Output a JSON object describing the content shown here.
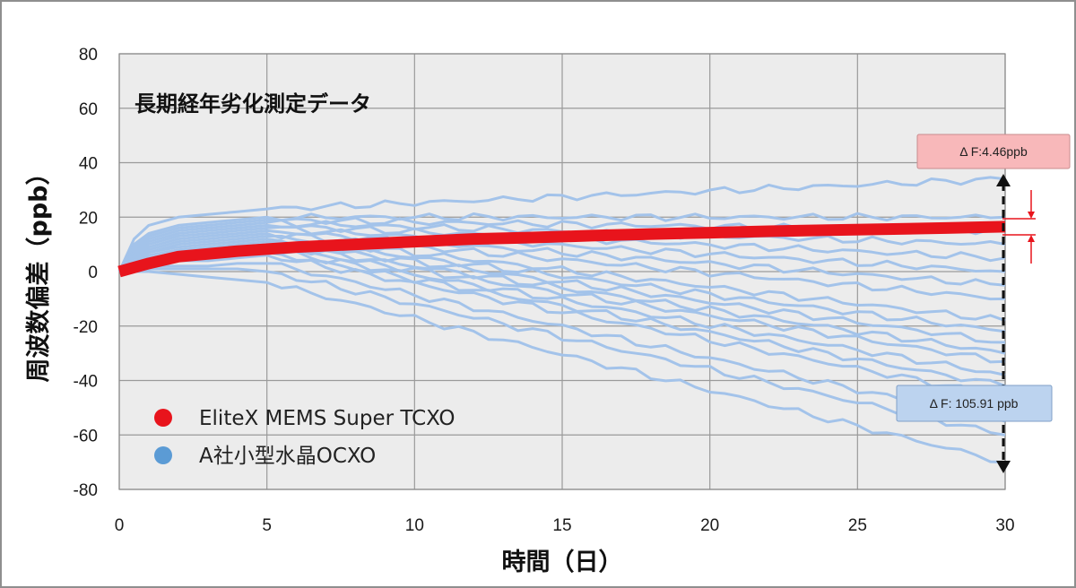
{
  "chart_data": {
    "type": "line",
    "title": "長期経年劣化測定データ",
    "xlabel": "時間（日）",
    "ylabel": "周波数偏差（ppb）",
    "xlim": [
      0,
      30
    ],
    "ylim": [
      -80,
      80
    ],
    "x_ticks": [
      "0",
      "5",
      "10",
      "15",
      "20",
      "25",
      "30"
    ],
    "y_ticks": [
      "80",
      "60",
      "40",
      "20",
      "0",
      "-20",
      "-40",
      "-60",
      "-80"
    ],
    "grid": true,
    "legend_position": "bottom-left",
    "legend": [
      {
        "name": "EliteX MEMS Super TCXO",
        "color": "#e8141c"
      },
      {
        "name": "A社小型水晶OCXO",
        "color": "#5b9bd5"
      }
    ],
    "series": [
      {
        "name": "EliteX MEMS Super TCXO",
        "color": "#e8141c",
        "x": [
          0,
          1,
          2,
          4,
          6,
          8,
          10,
          12,
          14,
          16,
          18,
          20,
          22,
          24,
          26,
          28,
          30
        ],
        "y": [
          0,
          3,
          5.5,
          7.5,
          9,
          10,
          11,
          12,
          12.5,
          13.2,
          13.8,
          14.3,
          14.8,
          15.2,
          15.6,
          16,
          16.5
        ]
      },
      {
        "name": "A社小型水晶OCXO",
        "color": "#a3c3ea",
        "x": [
          0,
          0.5,
          1,
          2,
          3,
          4,
          5,
          30
        ],
        "lines": [
          [
            0,
            12,
            17,
            20,
            21,
            22,
            23,
            34
          ],
          [
            0,
            10,
            14,
            17,
            18,
            19,
            20,
            20
          ],
          [
            0,
            9,
            13,
            16,
            17,
            18,
            19,
            15
          ],
          [
            0,
            8,
            12,
            15,
            16,
            17,
            18,
            10
          ],
          [
            0,
            7,
            11,
            14,
            15,
            16,
            17,
            5
          ],
          [
            0,
            6,
            10,
            13,
            14,
            15,
            16,
            0
          ],
          [
            0,
            5,
            9,
            12,
            13,
            14,
            15,
            -5
          ],
          [
            0,
            5,
            8,
            11,
            12,
            13,
            14,
            -10
          ],
          [
            0,
            4,
            7,
            10,
            11,
            12,
            13,
            -18
          ],
          [
            0,
            4,
            7,
            9,
            10,
            11,
            12,
            -22
          ],
          [
            0,
            3,
            6,
            8,
            9,
            10,
            11,
            -26
          ],
          [
            0,
            3,
            5,
            7,
            8,
            9,
            10,
            -30
          ],
          [
            0,
            3,
            5,
            6,
            7,
            8,
            9,
            -33
          ],
          [
            0,
            2,
            4,
            5,
            6,
            7,
            8,
            -38
          ],
          [
            0,
            2,
            4,
            5,
            5,
            6,
            7,
            -42
          ],
          [
            0,
            2,
            3,
            4,
            4,
            5,
            6,
            -46
          ],
          [
            0,
            1,
            2,
            2,
            2,
            3,
            3,
            -55
          ],
          [
            0,
            1,
            1,
            1,
            1,
            1,
            0,
            -60
          ],
          [
            0,
            0,
            0,
            -1,
            -2,
            -3,
            -4,
            -70
          ]
        ]
      }
    ],
    "annotations": [
      {
        "text": "Δ F:4.46ppb",
        "color": "#f7b3b5"
      },
      {
        "text": "Δ F: 105.91 ppb",
        "color": "#b9d1ee"
      }
    ]
  }
}
